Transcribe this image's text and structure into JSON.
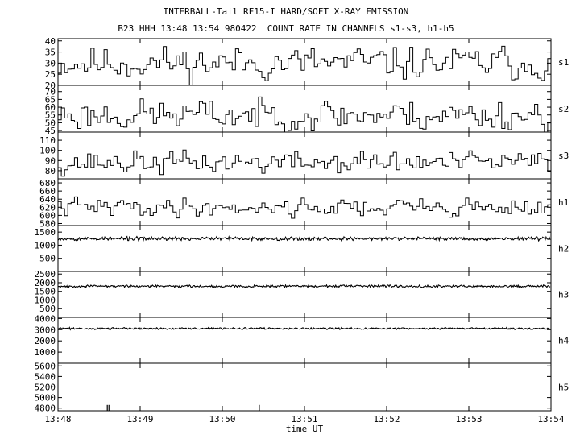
{
  "header": {
    "title": "INTERBALL-Tail RF15-I HARD/SOFT X-RAY EMISSION",
    "subtitle": "B23 HHH 13:48 13:54 980422  COUNT RATE IN CHANNELS s1-s3, h1-h5"
  },
  "chart_data": {
    "type": "line",
    "xlabel": "time UT",
    "x_ticks": [
      "13:48",
      "13:49",
      "13:50",
      "13:51",
      "13:52",
      "13:53",
      "13:54"
    ],
    "x_range_minutes": [
      0,
      6
    ],
    "panels": [
      {
        "name": "s1",
        "ylim": [
          20,
          41
        ],
        "yticks": [
          40,
          35,
          30,
          25,
          20
        ],
        "mean": 30,
        "amp": 6,
        "npts": 150,
        "style": "step",
        "seed": 11
      },
      {
        "name": "s2",
        "ylim": [
          44,
          74
        ],
        "yticks": [
          70,
          65,
          60,
          55,
          50,
          45
        ],
        "mean": 55,
        "amp": 8,
        "npts": 150,
        "style": "step",
        "seed": 23
      },
      {
        "name": "s3",
        "ylim": [
          72,
          118
        ],
        "yticks": [
          110,
          100,
          90,
          80
        ],
        "mean": 88,
        "amp": 9,
        "npts": 150,
        "style": "step",
        "seed": 37
      },
      {
        "name": "h1",
        "ylim": [
          575,
          690
        ],
        "yticks": [
          680,
          660,
          640,
          620,
          600,
          580
        ],
        "mean": 620,
        "amp": 18,
        "npts": 150,
        "style": "step",
        "seed": 41
      },
      {
        "name": "h2",
        "ylim": [
          0,
          1750
        ],
        "yticks": [
          1500,
          1000,
          500
        ],
        "mean": 1250,
        "amp": 90,
        "npts": 600,
        "style": "noise",
        "seed": 53
      },
      {
        "name": "h3",
        "ylim": [
          0,
          2650
        ],
        "yticks": [
          2500,
          2000,
          1500,
          1000,
          500
        ],
        "mean": 1800,
        "amp": 80,
        "npts": 600,
        "style": "noise",
        "seed": 67
      },
      {
        "name": "h4",
        "ylim": [
          0,
          4100
        ],
        "yticks": [
          4000,
          3000,
          2000,
          1000
        ],
        "mean": 3100,
        "amp": 110,
        "npts": 600,
        "style": "noise",
        "seed": 71
      },
      {
        "name": "h5",
        "ylim": [
          4750,
          5650
        ],
        "yticks": [
          5600,
          5400,
          5200,
          5000,
          4800
        ],
        "spikes": [
          0.6,
          0.62,
          2.45
        ],
        "spike_value": 4860,
        "style": "spikes"
      }
    ]
  }
}
